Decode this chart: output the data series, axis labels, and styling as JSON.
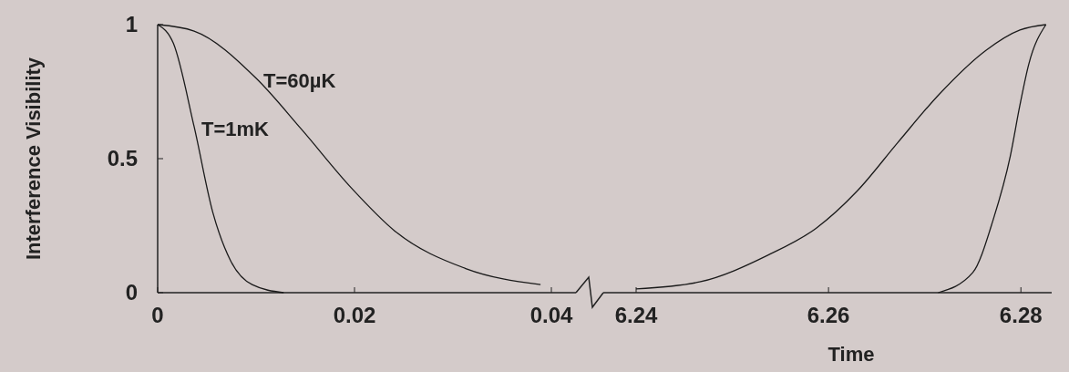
{
  "chart_data": [
    {
      "type": "line",
      "ylabel": "Interference Visibility",
      "xlim": [
        0,
        0.04
      ],
      "xticks": [
        0,
        0.02,
        0.04
      ],
      "ylim": [
        0,
        1
      ],
      "yticks": [
        0,
        0.5,
        1
      ],
      "grid": false,
      "marker": "none",
      "line_style": "solid",
      "series": [
        {
          "name": "T=60µK",
          "color": "#1a1a1a",
          "x": [
            0,
            0.0037,
            0.01,
            0.0146,
            0.0197,
            0.0241,
            0.0313,
            0.0389
          ],
          "values": [
            1,
            0.976,
            0.8,
            0.61,
            0.39,
            0.23,
            0.09,
            0.03
          ]
        },
        {
          "name": "T=1mK",
          "color": "#1a1a1a",
          "x": [
            0,
            0.0016,
            0.0037,
            0.0056,
            0.0074,
            0.0096,
            0.0128
          ],
          "values": [
            1,
            0.93,
            0.62,
            0.3,
            0.12,
            0.03,
            0
          ]
        }
      ]
    },
    {
      "type": "line",
      "xlabel": "Time",
      "xlim": [
        6.24,
        6.2832
      ],
      "xticks": [
        6.24,
        6.26,
        6.28
      ],
      "ylim": [
        0,
        1
      ],
      "tick_labels": "x",
      "grid": false,
      "marker": "none",
      "line_style": "solid",
      "series": [
        {
          "color": "#1a1a1a",
          "x": [
            6.24,
            6.2466,
            6.2537,
            6.2587,
            6.263,
            6.2672,
            6.2715,
            6.2764,
            6.2799,
            6.2826
          ],
          "values": [
            0.014,
            0.04,
            0.14,
            0.24,
            0.38,
            0.56,
            0.74,
            0.905,
            0.98,
            1
          ]
        },
        {
          "color": "#1a1a1a",
          "x": [
            6.2714,
            6.275,
            6.2771,
            6.2789,
            6.2799,
            6.2808,
            6.2826
          ],
          "values": [
            0,
            0.075,
            0.27,
            0.51,
            0.7,
            0.85,
            1
          ]
        }
      ]
    }
  ]
}
